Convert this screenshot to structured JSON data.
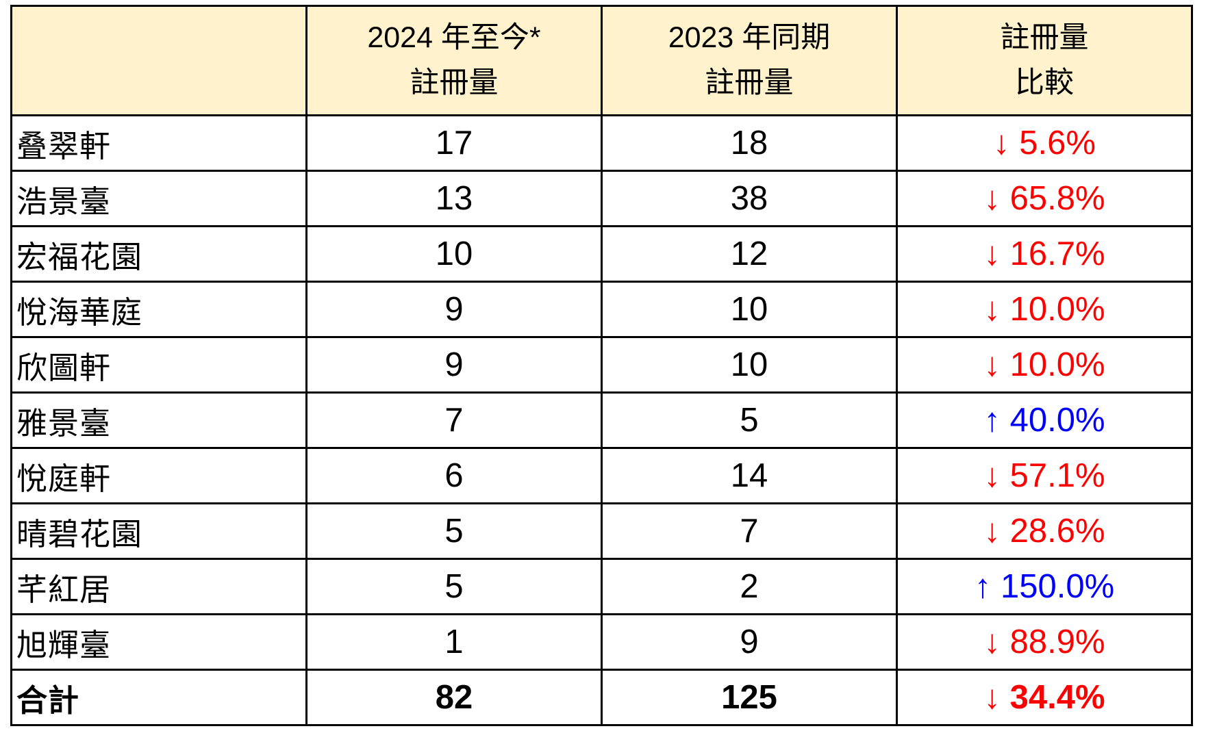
{
  "chart_data": {
    "type": "table",
    "header": {
      "col1": "",
      "col2": {
        "line1": "2024 年至今*",
        "line2": "註冊量"
      },
      "col3": {
        "line1": "2023 年同期",
        "line2": "註冊量"
      },
      "col4": {
        "line1": "註冊量",
        "line2": "比較"
      }
    },
    "rows": [
      {
        "name": "叠翠軒",
        "reg_2024": 17,
        "reg_2023": 18,
        "change": "↓ 5.6%",
        "change_pct": -5.6,
        "direction": "down"
      },
      {
        "name": "浩景臺",
        "reg_2024": 13,
        "reg_2023": 38,
        "change": "↓ 65.8%",
        "change_pct": -65.8,
        "direction": "down"
      },
      {
        "name": "宏福花園",
        "reg_2024": 10,
        "reg_2023": 12,
        "change": "↓ 16.7%",
        "change_pct": -16.7,
        "direction": "down"
      },
      {
        "name": "悅海華庭",
        "reg_2024": 9,
        "reg_2023": 10,
        "change": "↓ 10.0%",
        "change_pct": -10.0,
        "direction": "down"
      },
      {
        "name": "欣圖軒",
        "reg_2024": 9,
        "reg_2023": 10,
        "change": "↓ 10.0%",
        "change_pct": -10.0,
        "direction": "down"
      },
      {
        "name": "雅景臺",
        "reg_2024": 7,
        "reg_2023": 5,
        "change": "↑ 40.0%",
        "change_pct": 40.0,
        "direction": "up"
      },
      {
        "name": "悅庭軒",
        "reg_2024": 6,
        "reg_2023": 14,
        "change": "↓ 57.1%",
        "change_pct": -57.1,
        "direction": "down"
      },
      {
        "name": "晴碧花園",
        "reg_2024": 5,
        "reg_2023": 7,
        "change": "↓ 28.6%",
        "change_pct": -28.6,
        "direction": "down"
      },
      {
        "name": "芊紅居",
        "reg_2024": 5,
        "reg_2023": 2,
        "change": "↑ 150.0%",
        "change_pct": 150.0,
        "direction": "up"
      },
      {
        "name": "旭輝臺",
        "reg_2024": 1,
        "reg_2023": 9,
        "change": "↓ 88.9%",
        "change_pct": -88.9,
        "direction": "down"
      }
    ],
    "total_row": {
      "name": "合計",
      "reg_2024": 82,
      "reg_2023": 125,
      "change": "↓ 34.4%",
      "change_pct": -34.4,
      "direction": "down"
    },
    "colors": {
      "decrease": "#FF0000",
      "increase": "#0000FF",
      "header_bg": "#FFF2CC",
      "border": "#000000",
      "text": "#000000"
    }
  }
}
